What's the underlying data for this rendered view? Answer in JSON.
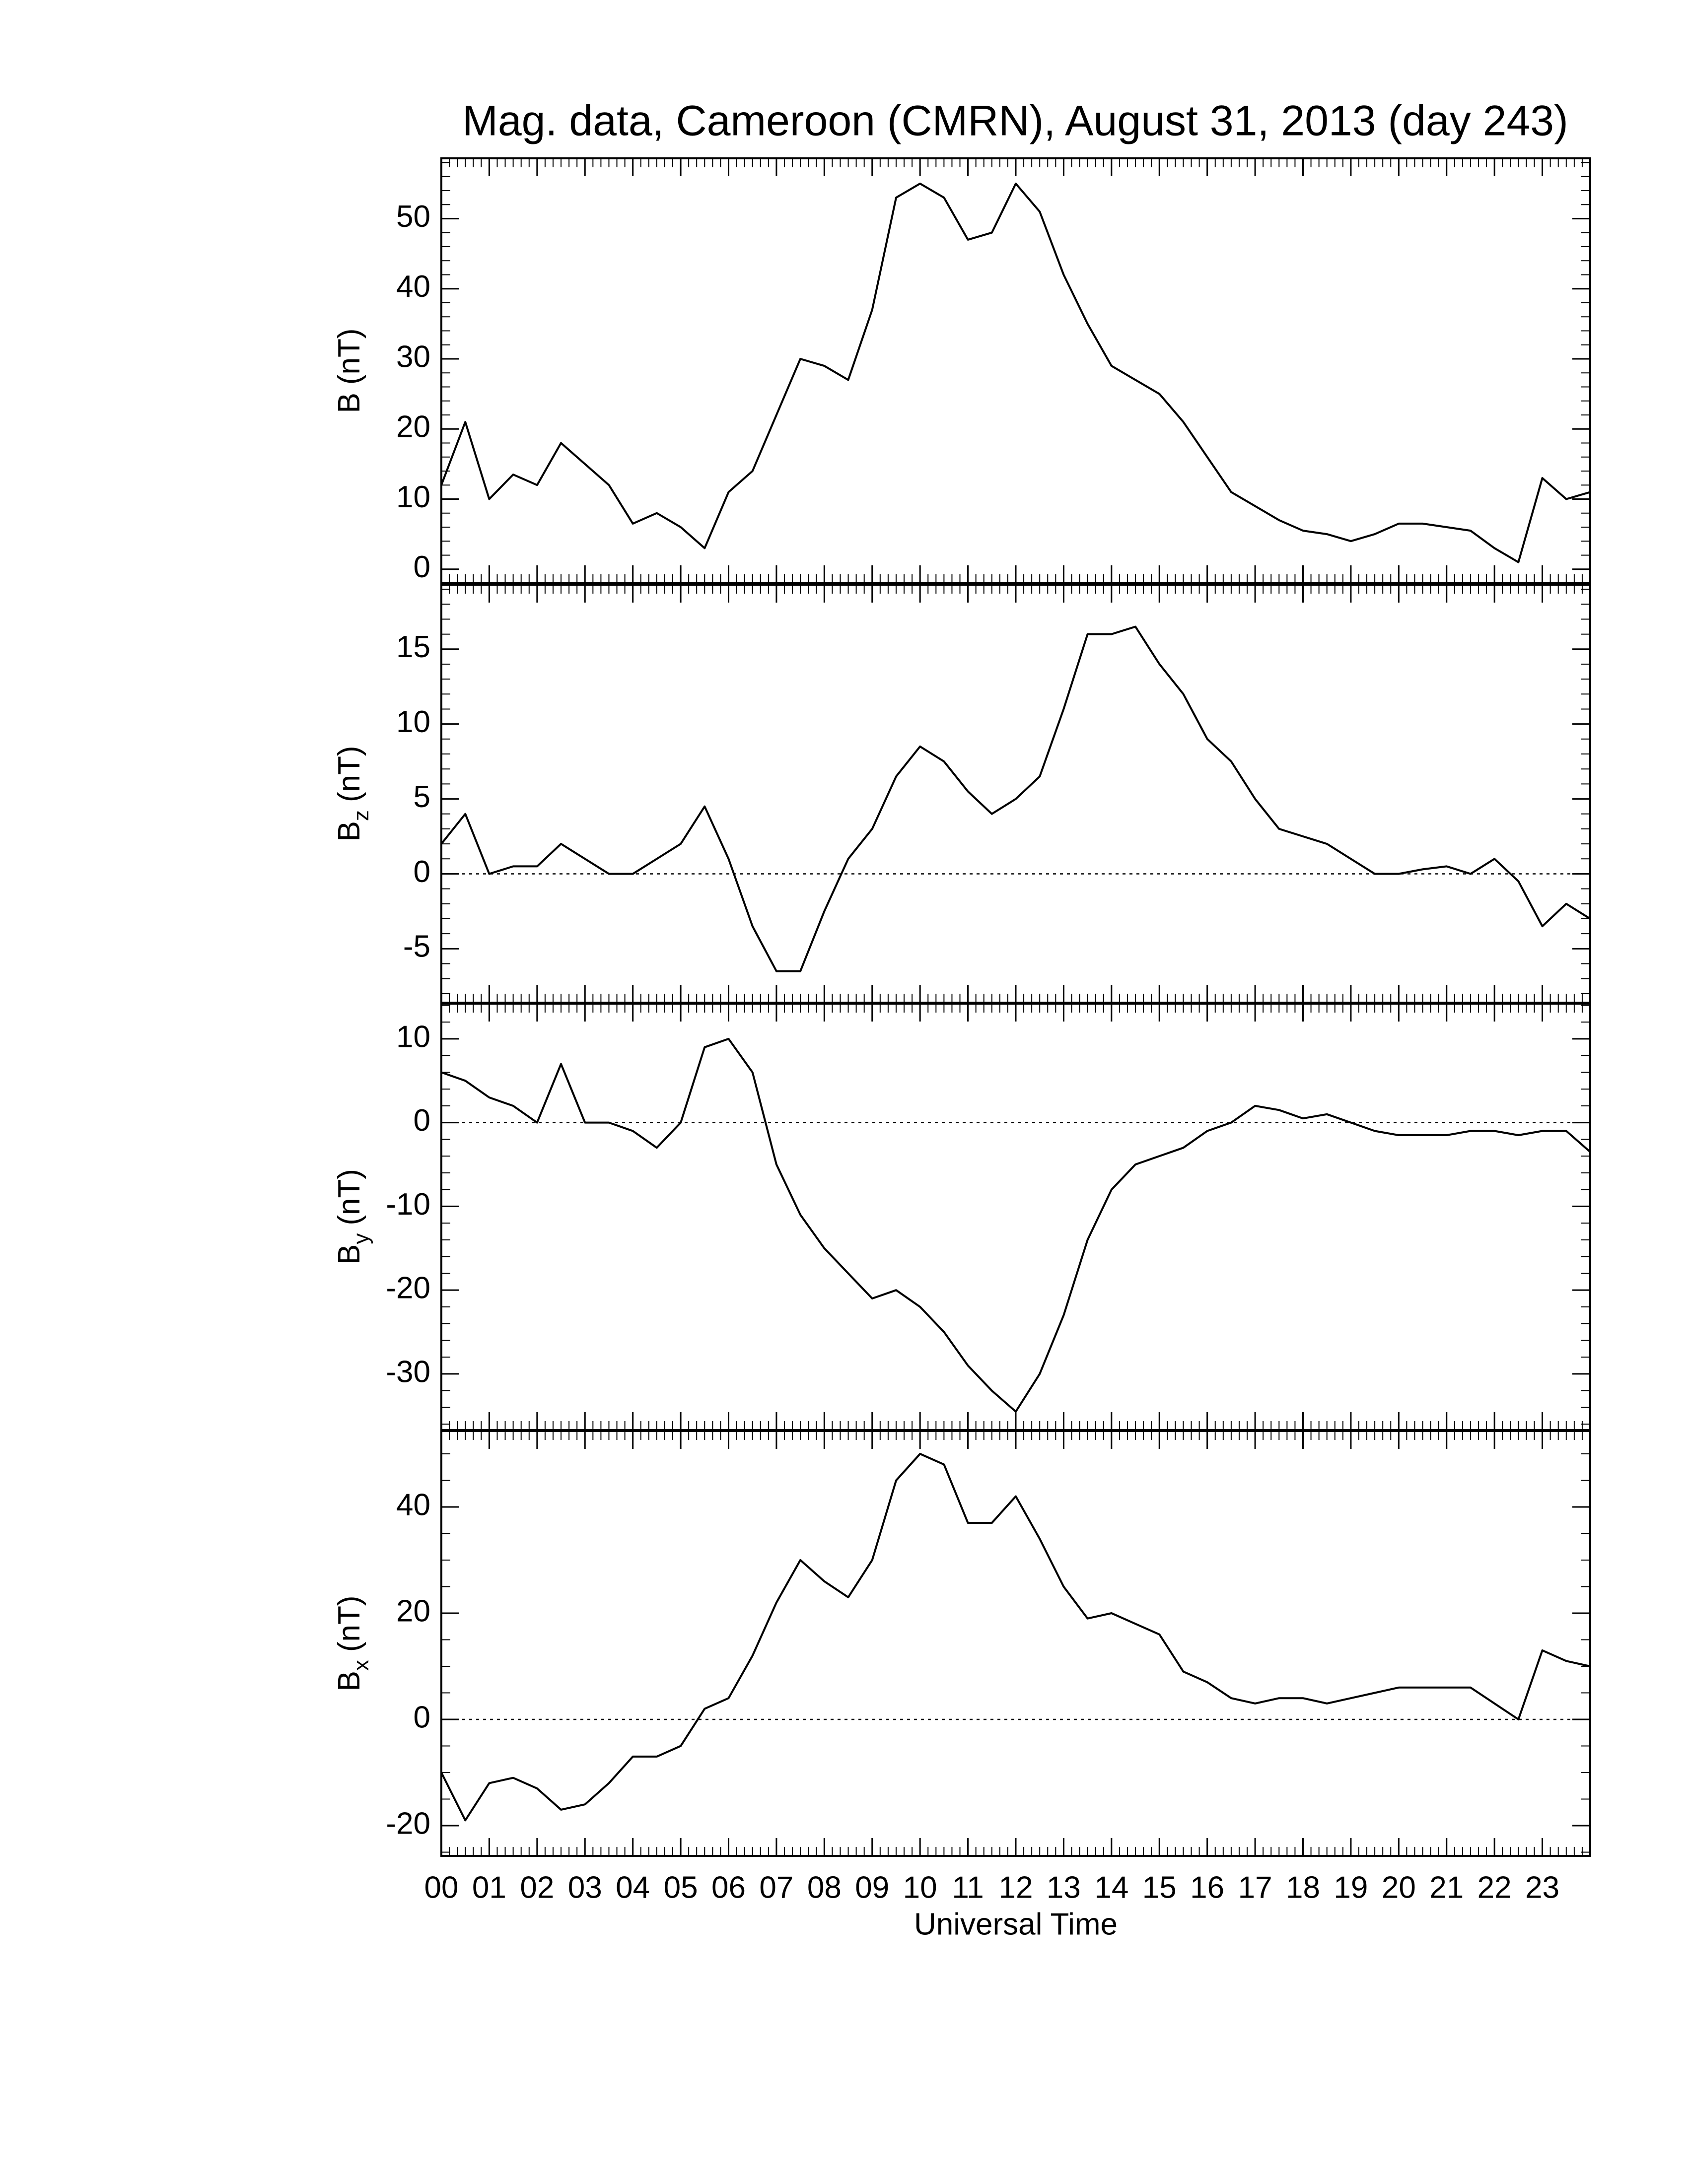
{
  "chart_data": [
    {
      "type": "line",
      "title": "Mag. data, Cameroon (CMRN), August 31, 2013 (day 243)",
      "ylabel_base": "B",
      "ylabel_unit": "(nT)",
      "color": "#000000",
      "xlim": [
        0,
        24
      ],
      "ylim": [
        -2,
        58.6
      ],
      "yticks": [
        0,
        10,
        20,
        30,
        40,
        50
      ],
      "yminor": 5,
      "zero_line": false,
      "x": [
        0,
        0.5,
        1,
        1.5,
        2,
        2.5,
        3,
        3.5,
        4,
        4.5,
        5,
        5.5,
        6,
        6.5,
        7,
        7.5,
        8,
        8.5,
        9,
        9.5,
        10,
        10.5,
        11,
        11.5,
        12,
        12.5,
        13,
        13.5,
        14,
        14.5,
        15,
        15.5,
        16,
        16.5,
        17,
        17.5,
        18,
        18.5,
        19,
        19.5,
        20,
        20.5,
        21,
        21.5,
        22,
        22.5,
        23,
        23.5,
        24
      ],
      "values": [
        12,
        21,
        10,
        13.5,
        12,
        18,
        15,
        12,
        6.5,
        8,
        6,
        3,
        11,
        14,
        22,
        30,
        29,
        27,
        37,
        53,
        55,
        53,
        47,
        48,
        55,
        51,
        42,
        35,
        29,
        27,
        25,
        21,
        16,
        11,
        9,
        7,
        5.5,
        5,
        4,
        5,
        6.5,
        6.5,
        6,
        5.5,
        3,
        1,
        13,
        10,
        11
      ]
    },
    {
      "type": "line",
      "ylabel_base": "B",
      "ylabel_sub": "z",
      "ylabel_unit": "(nT)",
      "color": "#000000",
      "xlim": [
        0,
        24
      ],
      "ylim": [
        -8.6,
        19.3
      ],
      "yticks": [
        -5,
        0,
        5,
        10,
        15
      ],
      "yminor": 5,
      "zero_line": true,
      "x": [
        0,
        0.5,
        1,
        1.5,
        2,
        2.5,
        3,
        3.5,
        4,
        4.5,
        5,
        5.5,
        6,
        6.5,
        7,
        7.5,
        8,
        8.5,
        9,
        9.5,
        10,
        10.5,
        11,
        11.5,
        12,
        12.5,
        13,
        13.5,
        14,
        14.5,
        15,
        15.5,
        16,
        16.5,
        17,
        17.5,
        18,
        18.5,
        19,
        19.5,
        20,
        20.5,
        21,
        21.5,
        22,
        22.5,
        23,
        23.5,
        24
      ],
      "values": [
        2,
        4,
        0,
        0.5,
        0.5,
        2,
        1,
        0,
        0,
        1,
        2,
        4.5,
        1,
        -3.5,
        -6.5,
        -6.5,
        -2.5,
        1,
        3,
        6.5,
        8.5,
        7.5,
        5.5,
        4,
        5,
        6.5,
        11,
        16,
        16,
        16.5,
        14,
        12,
        9,
        7.5,
        5,
        3,
        2.5,
        2,
        1,
        0,
        0,
        0.3,
        0.5,
        0,
        1,
        -0.5,
        -3.5,
        -2,
        -3
      ]
    },
    {
      "type": "line",
      "ylabel_base": "B",
      "ylabel_sub": "y",
      "ylabel_unit": "(nT)",
      "color": "#000000",
      "xlim": [
        0,
        24
      ],
      "ylim": [
        -36.7,
        14.2
      ],
      "yticks": [
        -30,
        -20,
        -10,
        0,
        10
      ],
      "yminor": 5,
      "zero_line": true,
      "x": [
        0,
        0.5,
        1,
        1.5,
        2,
        2.5,
        3,
        3.5,
        4,
        4.5,
        5,
        5.5,
        6,
        6.5,
        7,
        7.5,
        8,
        8.5,
        9,
        9.5,
        10,
        10.5,
        11,
        11.5,
        12,
        12.5,
        13,
        13.5,
        14,
        14.5,
        15,
        15.5,
        16,
        16.5,
        17,
        17.5,
        18,
        18.5,
        19,
        19.5,
        20,
        20.5,
        21,
        21.5,
        22,
        22.5,
        23,
        23.5,
        24
      ],
      "values": [
        6,
        5,
        3,
        2,
        0,
        7,
        0,
        0,
        -1,
        -3,
        0,
        9,
        10,
        6,
        -5,
        -11,
        -15,
        -18,
        -21,
        -20,
        -22,
        -25,
        -29,
        -32,
        -34.5,
        -30,
        -23,
        -14,
        -8,
        -5,
        -4,
        -3,
        -1,
        0,
        2,
        1.5,
        0.5,
        1,
        0,
        -1,
        -1.5,
        -1.5,
        -1.5,
        -1,
        -1,
        -1.5,
        -1,
        -1,
        -3.5
      ]
    },
    {
      "type": "line",
      "ylabel_base": "B",
      "ylabel_sub": "x",
      "ylabel_unit": "(nT)",
      "color": "#000000",
      "xlim": [
        0,
        24
      ],
      "ylim": [
        -25.7,
        54.3
      ],
      "yticks": [
        -20,
        0,
        20,
        40
      ],
      "yminor": 4,
      "zero_line": true,
      "xlabel": "Universal Time",
      "xminor": 6,
      "xticks": [
        {
          "value": 0,
          "label": "00"
        },
        {
          "value": 1,
          "label": "01"
        },
        {
          "value": 2,
          "label": "02"
        },
        {
          "value": 3,
          "label": "03"
        },
        {
          "value": 4,
          "label": "04"
        },
        {
          "value": 5,
          "label": "05"
        },
        {
          "value": 6,
          "label": "06"
        },
        {
          "value": 7,
          "label": "07"
        },
        {
          "value": 8,
          "label": "08"
        },
        {
          "value": 9,
          "label": "09"
        },
        10,
        11,
        12,
        13,
        14,
        15,
        16,
        17,
        18,
        19,
        20,
        21,
        22,
        23
      ],
      "x": [
        0,
        0.5,
        1,
        1.5,
        2,
        2.5,
        3,
        3.5,
        4,
        4.5,
        5,
        5.5,
        6,
        6.5,
        7,
        7.5,
        8,
        8.5,
        9,
        9.5,
        10,
        10.5,
        11,
        11.5,
        12,
        12.5,
        13,
        13.5,
        14,
        14.5,
        15,
        15.5,
        16,
        16.5,
        17,
        17.5,
        18,
        18.5,
        19,
        19.5,
        20,
        20.5,
        21,
        21.5,
        22,
        22.5,
        23,
        23.5,
        24
      ],
      "values": [
        -10,
        -19,
        -12,
        -11,
        -13,
        -17,
        -16,
        -12,
        -7,
        -7,
        -5,
        2,
        4,
        12,
        22,
        30,
        26,
        23,
        30,
        45,
        50,
        48,
        37,
        37,
        42,
        34,
        25,
        19,
        20,
        18,
        16,
        9,
        7,
        4,
        3,
        4,
        4,
        3,
        4,
        5,
        6,
        6,
        6,
        6,
        3,
        0,
        13,
        11,
        10
      ]
    }
  ]
}
